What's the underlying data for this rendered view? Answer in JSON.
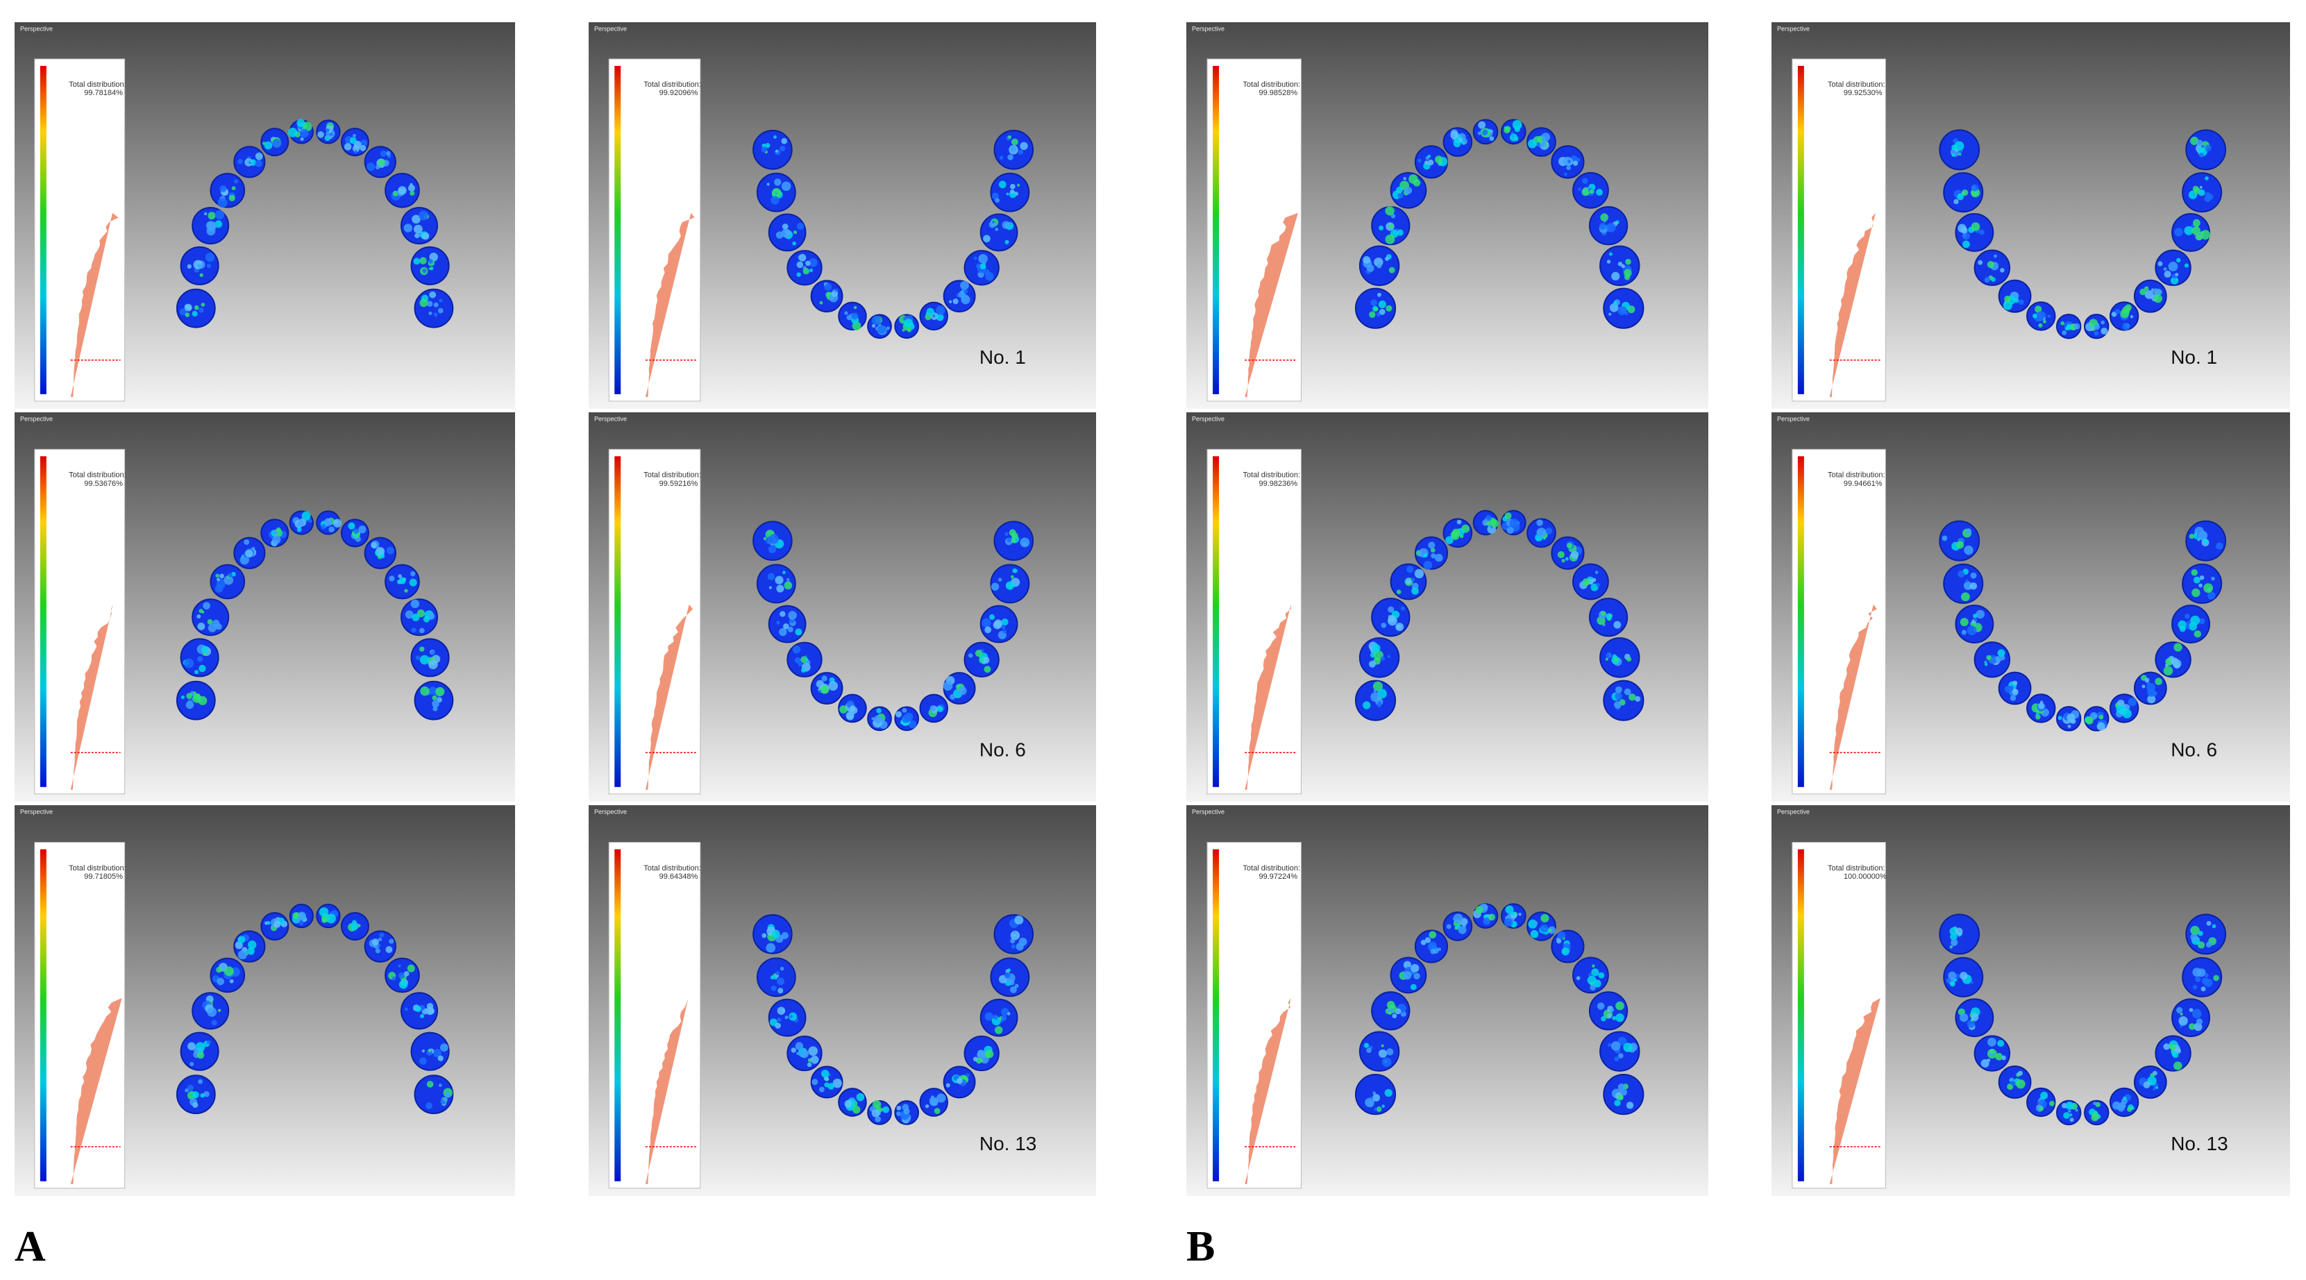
{
  "groups": [
    {
      "label": "A",
      "panels": [
        {
          "perspective": "Perspective",
          "distribution_label": "Total distribution:",
          "percentage": "99.78184%",
          "arch": "upper"
        },
        {
          "perspective": "Perspective",
          "distribution_label": "Total distribution:",
          "percentage": "99.92096%",
          "arch": "lower",
          "number": "No. 1"
        },
        {
          "perspective": "Perspective",
          "distribution_label": "Total distribution:",
          "percentage": "99.53676%",
          "arch": "upper"
        },
        {
          "perspective": "Perspective",
          "distribution_label": "Total distribution:",
          "percentage": "99.59216%",
          "arch": "lower",
          "number": "No. 6"
        },
        {
          "perspective": "Perspective",
          "distribution_label": "Total distribution:",
          "percentage": "99.71805%",
          "arch": "upper"
        },
        {
          "perspective": "Perspective",
          "distribution_label": "Total distribution:",
          "percentage": "99.64348%",
          "arch": "lower",
          "number": "No. 13"
        }
      ]
    },
    {
      "label": "B",
      "panels": [
        {
          "perspective": "Perspective",
          "distribution_label": "Total distribution:",
          "percentage": "99.98528%",
          "arch": "upper"
        },
        {
          "perspective": "Perspective",
          "distribution_label": "Total distribution:",
          "percentage": "99.92530%",
          "arch": "lower",
          "number": "No. 1"
        },
        {
          "perspective": "Perspective",
          "distribution_label": "Total distribution:",
          "percentage": "99.98236%",
          "arch": "upper"
        },
        {
          "perspective": "Perspective",
          "distribution_label": "Total distribution:",
          "percentage": "99.94661%",
          "arch": "lower",
          "number": "No. 6"
        },
        {
          "perspective": "Perspective",
          "distribution_label": "Total distribution:",
          "percentage": "99.97224%",
          "arch": "upper"
        },
        {
          "perspective": "Perspective",
          "distribution_label": "Total distribution:",
          "percentage": "100.00000%",
          "arch": "lower",
          "number": "No. 13"
        }
      ]
    }
  ]
}
